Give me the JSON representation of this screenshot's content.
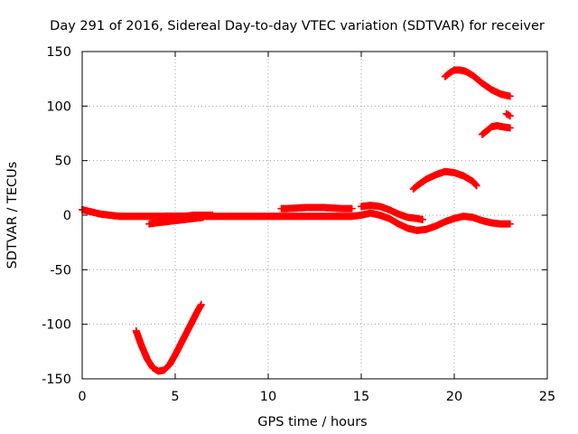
{
  "chart_data": {
    "type": "scatter",
    "title": "Day 291 of 2016, Sidereal Day-to-day VTEC variation (SDTVAR) for receiver",
    "xlabel": "GPS time / hours",
    "ylabel": "SDTVAR / TECUs",
    "xlim": [
      0,
      25
    ],
    "ylim": [
      -150,
      150
    ],
    "xticks": [
      0,
      5,
      10,
      15,
      20,
      25
    ],
    "yticks": [
      -150,
      -100,
      -50,
      0,
      50,
      100,
      150
    ],
    "grid": true,
    "marker": "plus",
    "color": "#ff0000",
    "series": [
      {
        "x": [
          0,
          0.5,
          1,
          1.5,
          2,
          2.5,
          3,
          3.5,
          4,
          4.5,
          5,
          5.5,
          6,
          6.5,
          7,
          7.5,
          8,
          8.5,
          9,
          9.5,
          10,
          10.5,
          11,
          11.5,
          12,
          12.5,
          13,
          13.5,
          14,
          14.5,
          15,
          15.5,
          16,
          16.5,
          17,
          17.5,
          18,
          18.5,
          19,
          19.5,
          20,
          20.5,
          21,
          21.5,
          22,
          22.5,
          23
        ],
        "y": [
          5,
          3,
          1,
          0,
          -1,
          -1,
          -1,
          -1,
          -1,
          -1,
          -1,
          -1,
          -1,
          -1,
          -1,
          -1,
          -1,
          -1,
          -1,
          -1,
          -1,
          -1,
          -1,
          -1,
          -1,
          -1,
          -1,
          -1,
          -1,
          -1,
          0,
          2,
          0,
          -3,
          -8,
          -12,
          -14,
          -13,
          -10,
          -6,
          -3,
          -1,
          -2,
          -5,
          -7,
          -8,
          -8
        ]
      },
      {
        "x": [
          3.6,
          4,
          4.5,
          5,
          5.5,
          6,
          6.5
        ],
        "y": [
          -8,
          -7,
          -6,
          -5,
          -4,
          -3,
          -2
        ]
      },
      {
        "x": [
          4.5,
          5,
          5.5,
          6,
          6.5,
          7
        ],
        "y": [
          -1,
          -1,
          -1,
          0,
          0,
          0
        ]
      },
      {
        "x": [
          10.7,
          11,
          11.5,
          12,
          12.5,
          13,
          13.5,
          14,
          14.5
        ],
        "y": [
          6,
          6,
          6.5,
          7,
          7,
          7,
          6.5,
          6,
          6
        ]
      },
      {
        "x": [
          15,
          15.5,
          16,
          16.5,
          17,
          17.5,
          18,
          18.3
        ],
        "y": [
          8,
          9,
          8,
          5,
          1,
          -2,
          -3,
          -4
        ]
      },
      {
        "x": [
          17.8,
          18,
          18.5,
          19,
          19.5,
          20,
          20.5,
          21,
          21.2
        ],
        "y": [
          24,
          27,
          33,
          37,
          40,
          39,
          36,
          31,
          27
        ]
      },
      {
        "x": [
          19.5,
          19.8,
          20,
          20.3,
          20.6,
          21,
          21.5,
          22,
          22.5,
          23
        ],
        "y": [
          127,
          131,
          133,
          133,
          132,
          128,
          121,
          115,
          111,
          109
        ]
      },
      {
        "x": [
          21.5,
          21.8,
          22,
          22.3,
          22.6,
          23
        ],
        "y": [
          74,
          78,
          81,
          82,
          81,
          80
        ]
      },
      {
        "x": [
          22.8,
          23
        ],
        "y": [
          93,
          91
        ]
      },
      {
        "x": [
          2.9,
          3.2,
          3.5,
          3.8,
          4.1,
          4.4,
          4.7,
          5.0,
          5.3,
          5.6,
          5.9,
          6.2,
          6.4
        ],
        "y": [
          -106,
          -120,
          -132,
          -140,
          -143,
          -142,
          -137,
          -128,
          -118,
          -108,
          -98,
          -88,
          -82
        ]
      }
    ]
  }
}
